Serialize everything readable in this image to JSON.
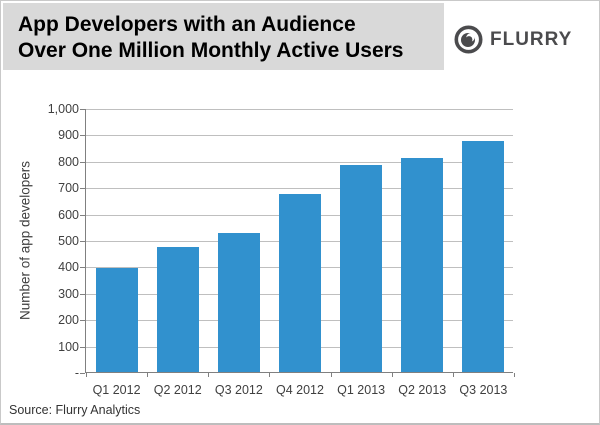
{
  "header": {
    "title_line1": "App Developers with an Audience",
    "title_line2": "Over One Million Monthly Active Users",
    "logo_text": "FLURRY"
  },
  "chart_data": {
    "type": "bar",
    "title": "App Developers with an Audience Over One Million Monthly Active Users",
    "categories": [
      "Q1 2012",
      "Q2 2012",
      "Q3 2012",
      "Q4 2012",
      "Q1 2013",
      "Q2 2013",
      "Q3 2013"
    ],
    "values": [
      395,
      475,
      525,
      675,
      785,
      810,
      875
    ],
    "xlabel": "",
    "ylabel": "Number of app developers",
    "ylim": [
      0,
      1000
    ],
    "ytick_values": [
      0,
      100,
      200,
      300,
      400,
      500,
      600,
      700,
      800,
      900,
      1000
    ],
    "ytick_labels": [
      "-",
      "100",
      "200",
      "300",
      "400",
      "500",
      "600",
      "700",
      "800",
      "900",
      "1,000"
    ],
    "grid": true,
    "legend": false,
    "bar_color": "#3191ce"
  },
  "footer": {
    "source": "Source: Flurry Analytics"
  },
  "colors": {
    "title_background": "#d9d9d9",
    "title_text": "#000000",
    "logo_gray": "#4b4b4d",
    "bar_blue": "#3191ce",
    "gridline_gray": "#bfbfbf",
    "axis_gray": "#808080"
  }
}
